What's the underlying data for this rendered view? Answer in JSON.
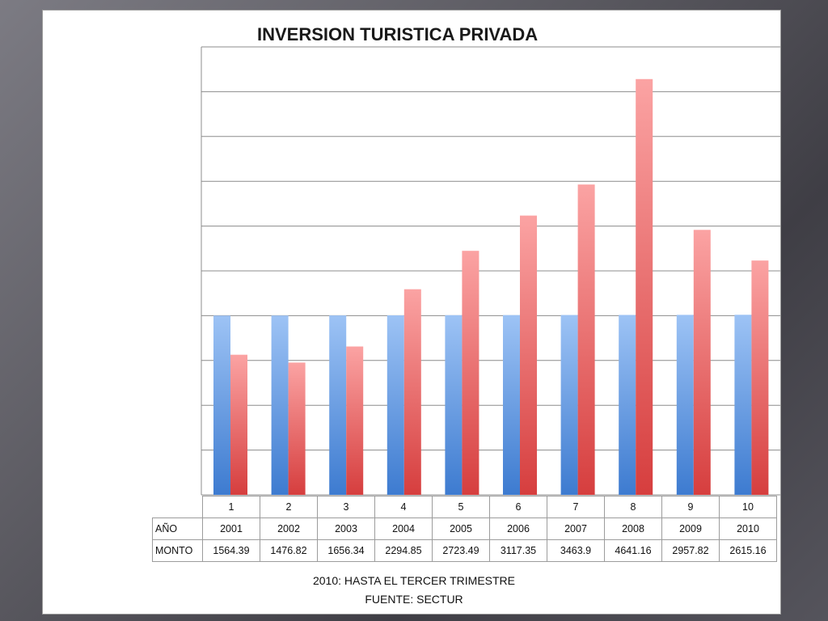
{
  "colors": {
    "series_a_top": "#9dc3f5",
    "series_a_bottom": "#3d7bd0",
    "series_b_top": "#fba3a3",
    "series_b_bottom": "#d63e3e",
    "gridline": "#8c8c8c"
  },
  "chart_data": {
    "type": "bar",
    "title": "INVERSION TURISTICA PRIVADA",
    "categories": [
      "1",
      "2",
      "3",
      "4",
      "5",
      "6",
      "7",
      "8",
      "9",
      "10"
    ],
    "series": [
      {
        "values": [
          2001,
          2002,
          2003,
          2004,
          2005,
          2006,
          2007,
          2008,
          2009,
          2010
        ]
      },
      {
        "values": [
          1564.39,
          1476.82,
          1656.34,
          2294.85,
          2723.49,
          3117.35,
          3463.9,
          4641.16,
          2957.82,
          2615.16
        ]
      }
    ],
    "ylim": [
      0,
      5000
    ],
    "grid": true,
    "legend": "none"
  },
  "table": {
    "header": [
      "1",
      "2",
      "3",
      "4",
      "5",
      "6",
      "7",
      "8",
      "9",
      "10"
    ],
    "rows": [
      {
        "label": "AÑO",
        "values": [
          "2001",
          "2002",
          "2003",
          "2004",
          "2005",
          "2006",
          "2007",
          "2008",
          "2009",
          "2010"
        ]
      },
      {
        "label": "MONTO",
        "values": [
          "1564.39",
          "1476.82",
          "1656.34",
          "2294.85",
          "2723.49",
          "3117.35",
          "3463.9",
          "4641.16",
          "2957.82",
          "2615.16"
        ]
      }
    ]
  },
  "footer": {
    "note": "2010: HASTA EL TERCER TRIMESTRE",
    "source": "FUENTE: SECTUR"
  }
}
